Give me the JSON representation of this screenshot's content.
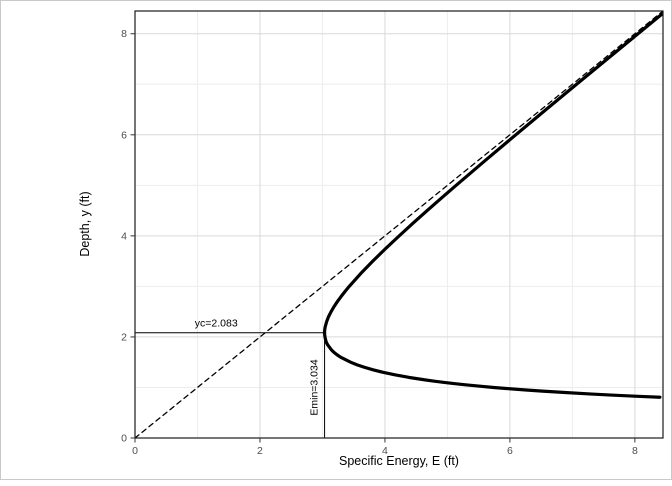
{
  "figure": {
    "background": "#ffffff",
    "border_color": "#c9c9c9"
  },
  "chart_data": {
    "type": "line",
    "title": "",
    "xlabel": "Specific Energy, E (ft)",
    "ylabel": "Depth, y (ft)",
    "xlim": [
      0,
      8.45
    ],
    "ylim": [
      0,
      8.45
    ],
    "x_ticks": [
      0,
      2,
      4,
      6,
      8
    ],
    "y_ticks": [
      0,
      2,
      4,
      6,
      8
    ],
    "x_minor_ticks": [
      1,
      3,
      5,
      7
    ],
    "y_minor_ticks": [
      1,
      3,
      5,
      7
    ],
    "grid": true,
    "legend": "none",
    "series": [
      {
        "name": "specific-energy-curve",
        "style": "solid",
        "width": 3.2,
        "points": [
          [
            8.4,
            0.807
          ],
          [
            7.96,
            0.83
          ],
          [
            7.62,
            0.85
          ],
          [
            7.31,
            0.87
          ],
          [
            6.88,
            0.9
          ],
          [
            6.49,
            0.93
          ],
          [
            6.26,
            0.95
          ],
          [
            5.94,
            0.98
          ],
          [
            5.74,
            1.0
          ],
          [
            5.52,
            1.025
          ],
          [
            5.31,
            1.05
          ],
          [
            5.12,
            1.075
          ],
          [
            4.95,
            1.1
          ],
          [
            4.79,
            1.125
          ],
          [
            4.64,
            1.15
          ],
          [
            4.51,
            1.175
          ],
          [
            4.38,
            1.2
          ],
          [
            4.16,
            1.25
          ],
          [
            3.97,
            1.3
          ],
          [
            3.81,
            1.35
          ],
          [
            3.67,
            1.4
          ],
          [
            3.55,
            1.45
          ],
          [
            3.45,
            1.5
          ],
          [
            3.37,
            1.55
          ],
          [
            3.29,
            1.6
          ],
          [
            3.23,
            1.65
          ],
          [
            3.18,
            1.7
          ],
          [
            3.14,
            1.75
          ],
          [
            3.11,
            1.8
          ],
          [
            3.08,
            1.85
          ],
          [
            3.06,
            1.9
          ],
          [
            3.049,
            1.95
          ],
          [
            3.04,
            2.0
          ],
          [
            3.035,
            2.05
          ],
          [
            3.034,
            2.083
          ],
          [
            3.034,
            2.1
          ],
          [
            3.037,
            2.15
          ],
          [
            3.044,
            2.2
          ],
          [
            3.066,
            2.3
          ],
          [
            3.097,
            2.4
          ],
          [
            3.138,
            2.5
          ],
          [
            3.185,
            2.6
          ],
          [
            3.239,
            2.7
          ],
          [
            3.298,
            2.8
          ],
          [
            3.361,
            2.9
          ],
          [
            3.428,
            3.0
          ],
          [
            3.609,
            3.25
          ],
          [
            3.805,
            3.5
          ],
          [
            4.012,
            3.75
          ],
          [
            4.228,
            4.0
          ],
          [
            4.449,
            4.25
          ],
          [
            4.676,
            4.5
          ],
          [
            4.906,
            4.75
          ],
          [
            5.14,
            5.0
          ],
          [
            5.613,
            5.5
          ],
          [
            6.094,
            6.0
          ],
          [
            6.579,
            6.5
          ],
          [
            7.067,
            7.0
          ],
          [
            7.558,
            7.5
          ],
          [
            8.05,
            8.0
          ],
          [
            8.396,
            8.35
          ],
          [
            8.45,
            8.405
          ]
        ]
      },
      {
        "name": "asymptote-E-equals-y",
        "style": "dashed",
        "width": 1.3,
        "points": [
          [
            0,
            0
          ],
          [
            8.45,
            8.45
          ]
        ]
      }
    ],
    "annotations": {
      "yc": {
        "label": "yc=2.083",
        "value": 2.083,
        "line": {
          "from": [
            0,
            2.083
          ],
          "to": [
            3.034,
            2.083
          ]
        },
        "label_pos": [
          1.3,
          2.083
        ],
        "label_dy": -6,
        "rotation": 0
      },
      "emin": {
        "label": "Emin=3.034",
        "value": 3.034,
        "line": {
          "from": [
            3.034,
            0
          ],
          "to": [
            3.034,
            2.083
          ]
        },
        "label_pos": [
          2.92,
          1.0
        ],
        "label_dy": 0,
        "rotation": -90
      }
    },
    "colors": {
      "curve": "#000000",
      "asymptote": "#000000",
      "annotation_line": "#000000",
      "grid_major": "#d9d9d9",
      "grid_minor": "#ededed",
      "panel_border": "#1a1a1a",
      "panel_bg": "#ffffff",
      "tick": "#333333",
      "tick_label": "#4d4d4d",
      "axis_title": "#000000"
    }
  }
}
